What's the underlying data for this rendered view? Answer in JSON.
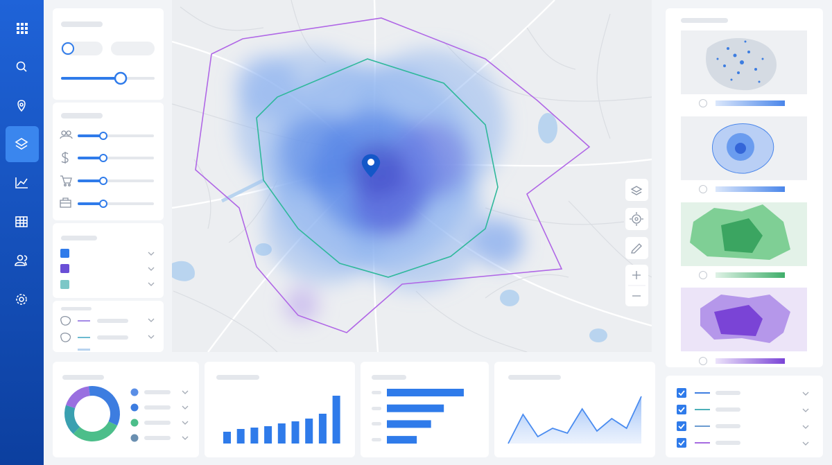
{
  "widgets": {
    "donut": {
      "type": "pie",
      "values": [
        18,
        34,
        30,
        18
      ],
      "colors": [
        "#9a6fe0",
        "#3d7de0",
        "#4cbe8a",
        "#3aa0b0"
      ]
    },
    "bar_chart": {
      "type": "bar",
      "values": [
        17,
        21,
        23,
        25,
        29,
        32,
        36,
        43,
        69
      ],
      "ylim": [
        0,
        75
      ],
      "color": "#2f7bea"
    },
    "hbar_chart": {
      "type": "hbar",
      "values": [
        108,
        80,
        62,
        42
      ],
      "xlim": [
        0,
        110
      ],
      "color": "#2f7bea"
    },
    "area_chart": {
      "type": "area",
      "values": [
        0,
        42,
        10,
        22,
        15,
        50,
        18,
        36,
        22,
        68
      ],
      "ylim": [
        0,
        75
      ],
      "color": "#4a8cf0"
    }
  }
}
